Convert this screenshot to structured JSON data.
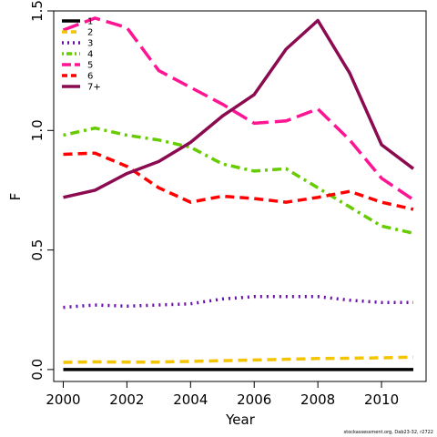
{
  "chart_data": {
    "type": "line",
    "xlabel": "Year",
    "ylabel": "F",
    "xlim": [
      1999.7,
      2011.4
    ],
    "ylim": [
      -0.05,
      1.5
    ],
    "xticks": [
      2000,
      2002,
      2004,
      2006,
      2008,
      2010
    ],
    "yticks": [
      0.0,
      0.5,
      1.0,
      1.5
    ],
    "ytick_labels": [
      "0.0",
      "0.5",
      "1.0",
      "1.5"
    ],
    "legend_position": "top-left",
    "x": [
      2000,
      2001,
      2002,
      2003,
      2004,
      2005,
      2006,
      2007,
      2008,
      2009,
      2010,
      2011
    ],
    "series": [
      {
        "name": "1",
        "color": "#000000",
        "dash": "solid",
        "values": [
          0.0,
          0.0,
          0.0,
          0.0,
          0.0,
          0.0,
          0.0,
          0.0,
          0.0,
          0.0,
          0.0,
          0.0
        ]
      },
      {
        "name": "2",
        "color": "#F5C400",
        "dash": "dashed",
        "values": [
          0.03,
          0.032,
          0.031,
          0.031,
          0.034,
          0.037,
          0.04,
          0.043,
          0.046,
          0.047,
          0.049,
          0.052
        ]
      },
      {
        "name": "3",
        "color": "#6A0DAD",
        "dash": "dotted",
        "values": [
          0.26,
          0.27,
          0.265,
          0.27,
          0.275,
          0.295,
          0.305,
          0.305,
          0.305,
          0.29,
          0.28,
          0.28
        ]
      },
      {
        "name": "4",
        "color": "#66CC00",
        "dash": "dotdash",
        "values": [
          0.98,
          1.01,
          0.98,
          0.96,
          0.93,
          0.86,
          0.83,
          0.84,
          0.76,
          0.68,
          0.6,
          0.57
        ]
      },
      {
        "name": "5",
        "color": "#FF1493",
        "dash": "longdash",
        "values": [
          1.42,
          1.47,
          1.43,
          1.25,
          1.18,
          1.11,
          1.03,
          1.04,
          1.09,
          0.96,
          0.8,
          0.71
        ]
      },
      {
        "name": "6",
        "color": "#FF0000",
        "dash": "dashed",
        "values": [
          0.9,
          0.905,
          0.85,
          0.76,
          0.7,
          0.725,
          0.715,
          0.7,
          0.72,
          0.745,
          0.7,
          0.67
        ]
      },
      {
        "name": "7+",
        "color": "#8B0A50",
        "dash": "solid",
        "values": [
          0.72,
          0.75,
          0.82,
          0.87,
          0.95,
          1.06,
          1.15,
          1.34,
          1.46,
          1.24,
          0.94,
          0.84
        ]
      }
    ]
  },
  "footnote": "stockassessment.org, Dab23-32, r2722"
}
